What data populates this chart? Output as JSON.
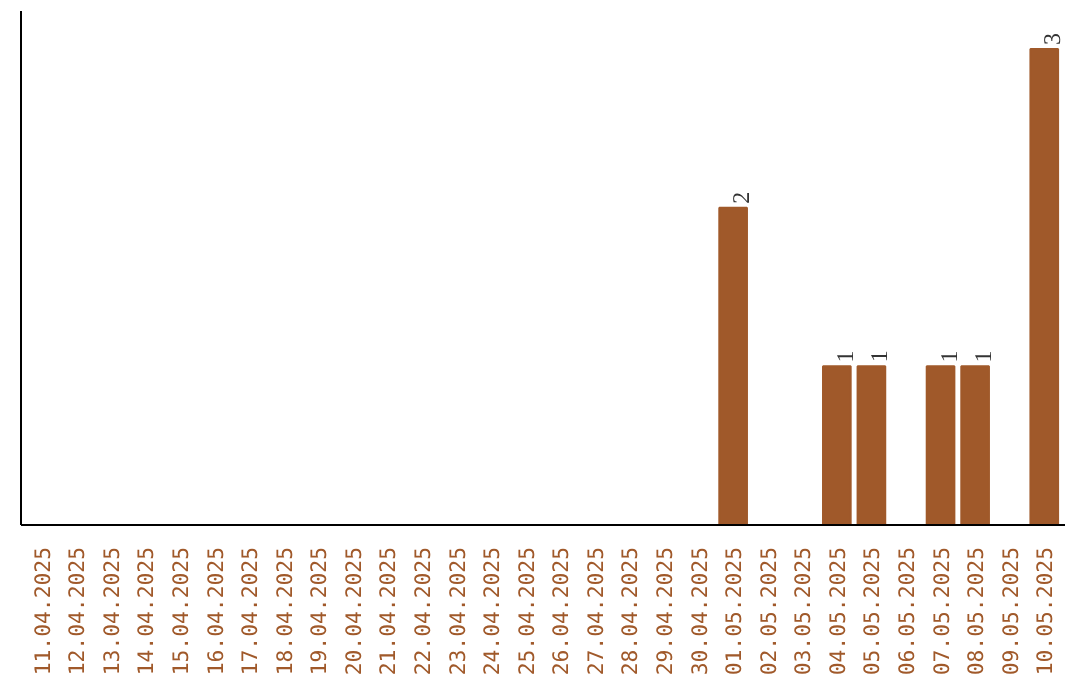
{
  "chart_data": {
    "type": "bar",
    "categories": [
      "11.04.2025",
      "12.04.2025",
      "13.04.2025",
      "14.04.2025",
      "15.04.2025",
      "16.04.2025",
      "17.04.2025",
      "18.04.2025",
      "19.04.2025",
      "20.04.2025",
      "21.04.2025",
      "22.04.2025",
      "23.04.2025",
      "24.04.2025",
      "25.04.2025",
      "26.04.2025",
      "27.04.2025",
      "28.04.2025",
      "29.04.2025",
      "30.04.2025",
      "01.05.2025",
      "02.05.2025",
      "03.05.2025",
      "04.05.2025",
      "05.05.2025",
      "06.05.2025",
      "07.05.2025",
      "08.05.2025",
      "09.05.2025",
      "10.05.2025"
    ],
    "values": [
      null,
      null,
      null,
      null,
      null,
      null,
      null,
      null,
      null,
      null,
      null,
      null,
      null,
      null,
      null,
      null,
      null,
      null,
      null,
      null,
      2,
      null,
      null,
      1,
      1,
      null,
      1,
      1,
      null,
      3
    ],
    "value_labels": [
      null,
      null,
      null,
      null,
      null,
      null,
      null,
      null,
      null,
      null,
      null,
      null,
      null,
      null,
      null,
      null,
      null,
      null,
      null,
      null,
      "2",
      null,
      null,
      "1",
      "1",
      null,
      "1",
      "1",
      null,
      "3"
    ],
    "color": "#a0592a",
    "grid": false,
    "tick_labels": "x"
  }
}
